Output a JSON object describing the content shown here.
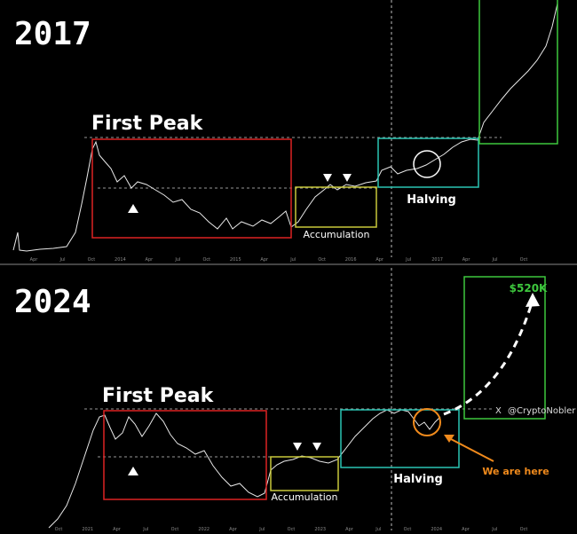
{
  "panels": [
    {
      "year": "2017",
      "peak_label": "First Peak",
      "accumulation_label": "Accumulation",
      "halving_label": "Halving",
      "x_labels": [
        "Apr",
        "Jul",
        "Oct",
        "2014",
        "Apr",
        "Jul",
        "Oct",
        "2015",
        "Apr",
        "Jul",
        "Oct",
        "2016",
        "Apr",
        "Jul",
        "2017",
        "Apr",
        "Jul",
        "Oct"
      ]
    },
    {
      "year": "2024",
      "peak_label": "First Peak",
      "accumulation_label": "Accumulation",
      "halving_label": "Halving",
      "target_label": "$520K",
      "handle": "@CryptoNobler",
      "x_icon": "X",
      "here_label": "We are here",
      "x_labels": [
        "Oct",
        "2021",
        "Apr",
        "Jul",
        "Oct",
        "2022",
        "Apr",
        "Jul",
        "Oct",
        "2023",
        "Apr",
        "Jul",
        "Oct",
        "2024",
        "Apr",
        "Jul",
        "Oct"
      ]
    }
  ]
}
